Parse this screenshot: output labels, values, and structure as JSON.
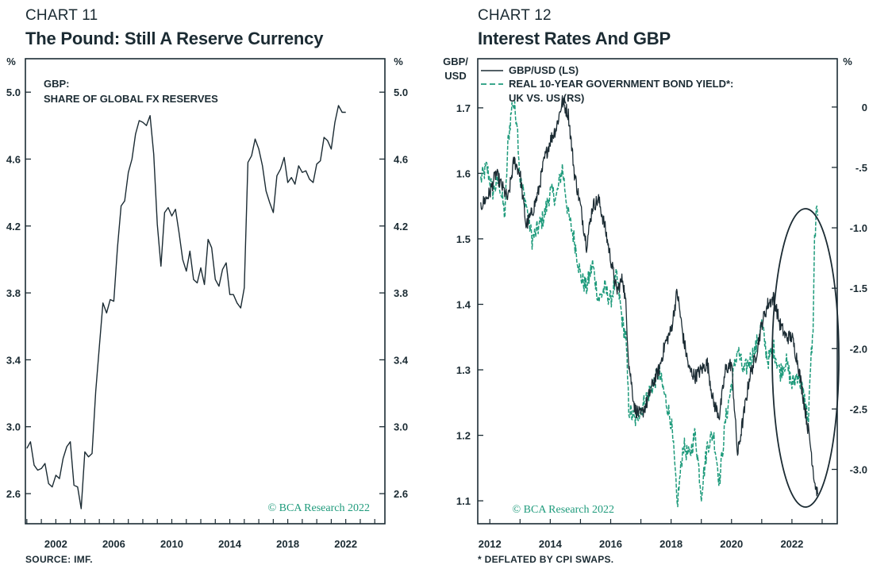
{
  "chart_data": [
    {
      "chart_number": "CHART 11",
      "title": "The Pound: Still A Reserve Currency",
      "type": "line",
      "yunit_left": "%",
      "yunit_right": "%",
      "legend": [
        "GBP:",
        "SHARE OF GLOBAL FX RESERVES"
      ],
      "watermark": "© BCA Research 2022",
      "source": "SOURCE: IMF.",
      "xlim": [
        1999.9,
        2024.7
      ],
      "ylim": [
        2.42,
        5.2
      ],
      "yticks": [
        2.6,
        3.0,
        3.4,
        3.8,
        4.2,
        4.6,
        5.0
      ],
      "ytick_labels": [
        "2.6",
        "3.0",
        "3.4",
        "3.8",
        "4.2",
        "4.6",
        "5.0"
      ],
      "xticks": [
        2002,
        2006,
        2010,
        2014,
        2018,
        2022
      ],
      "xtick_labels": [
        "2002",
        "2006",
        "2010",
        "2014",
        "2018",
        "2022"
      ],
      "series": [
        {
          "name": "GBP share of global FX reserves",
          "color": "#1b2b33",
          "x": [
            2000.0,
            2000.25,
            2000.5,
            2000.75,
            2001.0,
            2001.25,
            2001.5,
            2001.75,
            2002.0,
            2002.25,
            2002.5,
            2002.75,
            2003.0,
            2003.25,
            2003.5,
            2003.75,
            2004.0,
            2004.25,
            2004.5,
            2004.75,
            2005.0,
            2005.25,
            2005.5,
            2005.75,
            2006.0,
            2006.25,
            2006.5,
            2006.75,
            2007.0,
            2007.25,
            2007.5,
            2007.75,
            2008.0,
            2008.25,
            2008.5,
            2008.75,
            2009.0,
            2009.25,
            2009.5,
            2009.75,
            2010.0,
            2010.25,
            2010.5,
            2010.75,
            2011.0,
            2011.25,
            2011.5,
            2011.75,
            2012.0,
            2012.25,
            2012.5,
            2012.75,
            2013.0,
            2013.25,
            2013.5,
            2013.75,
            2014.0,
            2014.25,
            2014.5,
            2014.75,
            2015.0,
            2015.25,
            2015.5,
            2015.75,
            2016.0,
            2016.25,
            2016.5,
            2016.75,
            2017.0,
            2017.25,
            2017.5,
            2017.75,
            2018.0,
            2018.25,
            2018.5,
            2018.75,
            2019.0,
            2019.25,
            2019.5,
            2019.75,
            2020.0,
            2020.25,
            2020.5,
            2020.75,
            2021.0,
            2021.25,
            2021.5,
            2021.75,
            2022.0
          ],
          "values": [
            2.87,
            2.91,
            2.77,
            2.74,
            2.75,
            2.78,
            2.66,
            2.64,
            2.71,
            2.69,
            2.81,
            2.88,
            2.91,
            2.65,
            2.64,
            2.51,
            2.85,
            2.82,
            2.84,
            3.21,
            3.48,
            3.74,
            3.68,
            3.76,
            3.75,
            4.07,
            4.32,
            4.35,
            4.52,
            4.6,
            4.75,
            4.83,
            4.82,
            4.8,
            4.86,
            4.63,
            4.21,
            3.96,
            4.28,
            4.31,
            4.26,
            4.3,
            4.16,
            4.0,
            3.93,
            4.05,
            3.88,
            3.86,
            3.95,
            3.85,
            4.12,
            4.07,
            3.88,
            3.84,
            3.94,
            3.98,
            3.79,
            3.79,
            3.74,
            3.71,
            3.83,
            4.58,
            4.62,
            4.72,
            4.66,
            4.56,
            4.41,
            4.34,
            4.28,
            4.5,
            4.54,
            4.61,
            4.46,
            4.49,
            4.45,
            4.56,
            4.52,
            4.53,
            4.48,
            4.46,
            4.57,
            4.59,
            4.73,
            4.71,
            4.66,
            4.82,
            4.92,
            4.88,
            4.88
          ]
        }
      ]
    },
    {
      "chart_number": "CHART 12",
      "title": "Interest Rates And GBP",
      "type": "line",
      "yunit_left": [
        "GBP/",
        "USD"
      ],
      "yunit_right": "%",
      "watermark": "© BCA Research 2022",
      "footnote": "* DEFLATED BY CPI SWAPS.",
      "xlim": [
        2011.6,
        2023.5
      ],
      "ylim_left": [
        1.065,
        1.775
      ],
      "yticks_left": [
        1.1,
        1.2,
        1.3,
        1.4,
        1.5,
        1.6,
        1.7
      ],
      "ytick_labels_left": [
        "1.1",
        "1.2",
        "1.3",
        "1.4",
        "1.5",
        "1.6",
        "1.7"
      ],
      "ylim_right": [
        -3.45,
        0.4
      ],
      "yticks_right": [
        0,
        -0.5,
        -1.0,
        -1.5,
        -2.0,
        -2.5,
        -3.0
      ],
      "ytick_labels_right": [
        "0",
        "-.5",
        "-1.0",
        "-1.5",
        "-2.0",
        "-2.5",
        "-3.0"
      ],
      "xticks": [
        2012,
        2014,
        2016,
        2018,
        2020,
        2022
      ],
      "xtick_labels": [
        "2012",
        "2014",
        "2016",
        "2018",
        "2020",
        "2022"
      ],
      "legend": [
        {
          "label": "GBP/USD (LS)",
          "style": "solid",
          "color": "#1b2b33"
        },
        {
          "label": "REAL 10-YEAR GOVERNMENT BOND YIELD*:",
          "sublabel": "UK VS. US (RS)",
          "style": "dashed",
          "color": "#1f9b7c"
        }
      ],
      "annotation": "ellipse highlighting 2021-2022",
      "series": [
        {
          "name": "GBP/USD (LS)",
          "axis": "left",
          "color": "#1b2b33",
          "x": [
            2011.7,
            2012.0,
            2012.2,
            2012.4,
            2012.6,
            2012.8,
            2013.0,
            2013.2,
            2013.4,
            2013.6,
            2013.8,
            2014.0,
            2014.2,
            2014.4,
            2014.6,
            2014.8,
            2015.0,
            2015.2,
            2015.4,
            2015.6,
            2015.8,
            2016.0,
            2016.2,
            2016.4,
            2016.5,
            2016.6,
            2016.8,
            2017.0,
            2017.2,
            2017.4,
            2017.6,
            2017.8,
            2018.0,
            2018.2,
            2018.4,
            2018.6,
            2018.8,
            2019.0,
            2019.2,
            2019.4,
            2019.6,
            2019.8,
            2020.0,
            2020.2,
            2020.4,
            2020.6,
            2020.8,
            2021.0,
            2021.2,
            2021.4,
            2021.6,
            2021.8,
            2022.0,
            2022.2,
            2022.4,
            2022.6,
            2022.75,
            2022.85
          ],
          "values": [
            1.55,
            1.57,
            1.6,
            1.58,
            1.56,
            1.62,
            1.6,
            1.52,
            1.54,
            1.57,
            1.62,
            1.65,
            1.67,
            1.71,
            1.69,
            1.6,
            1.55,
            1.49,
            1.55,
            1.56,
            1.52,
            1.47,
            1.42,
            1.44,
            1.4,
            1.31,
            1.24,
            1.23,
            1.25,
            1.28,
            1.3,
            1.34,
            1.36,
            1.42,
            1.35,
            1.3,
            1.29,
            1.3,
            1.31,
            1.25,
            1.23,
            1.3,
            1.31,
            1.17,
            1.23,
            1.29,
            1.32,
            1.37,
            1.4,
            1.41,
            1.37,
            1.35,
            1.35,
            1.31,
            1.25,
            1.19,
            1.13,
            1.11
          ]
        },
        {
          "name": "REAL 10-YEAR GOVERNMENT BOND YIELD*: UK VS. US (RS)",
          "axis": "right",
          "color": "#1f9b7c",
          "x": [
            2011.7,
            2011.9,
            2012.1,
            2012.3,
            2012.5,
            2012.6,
            2012.75,
            2012.9,
            2013.0,
            2013.2,
            2013.4,
            2013.6,
            2013.8,
            2014.0,
            2014.2,
            2014.4,
            2014.6,
            2014.8,
            2015.0,
            2015.2,
            2015.4,
            2015.6,
            2015.8,
            2016.0,
            2016.2,
            2016.4,
            2016.5,
            2016.6,
            2016.8,
            2017.0,
            2017.2,
            2017.4,
            2017.6,
            2017.8,
            2018.0,
            2018.1,
            2018.2,
            2018.4,
            2018.6,
            2018.8,
            2019.0,
            2019.2,
            2019.4,
            2019.6,
            2019.8,
            2020.0,
            2020.2,
            2020.4,
            2020.6,
            2020.8,
            2021.0,
            2021.2,
            2021.4,
            2021.6,
            2021.8,
            2022.0,
            2022.2,
            2022.4,
            2022.55,
            2022.62,
            2022.7,
            2022.75,
            2022.8,
            2022.85
          ],
          "values": [
            -0.6,
            -0.5,
            -0.7,
            -0.6,
            -0.9,
            -0.3,
            0.05,
            -0.1,
            -0.6,
            -0.8,
            -1.1,
            -1.0,
            -0.9,
            -0.7,
            -0.75,
            -0.5,
            -0.9,
            -1.1,
            -1.4,
            -1.5,
            -1.3,
            -1.6,
            -1.5,
            -1.6,
            -1.4,
            -1.8,
            -1.9,
            -2.5,
            -2.6,
            -2.5,
            -2.4,
            -2.3,
            -2.2,
            -2.4,
            -2.6,
            -2.9,
            -3.3,
            -2.8,
            -2.9,
            -2.7,
            -3.2,
            -2.8,
            -2.7,
            -3.1,
            -2.6,
            -2.3,
            -2.0,
            -2.2,
            -2.1,
            -2.0,
            -1.8,
            -2.1,
            -2.0,
            -2.2,
            -2.1,
            -2.3,
            -2.2,
            -2.4,
            -2.6,
            -2.1,
            -1.9,
            -1.1,
            -0.9,
            -0.9
          ]
        }
      ]
    }
  ]
}
